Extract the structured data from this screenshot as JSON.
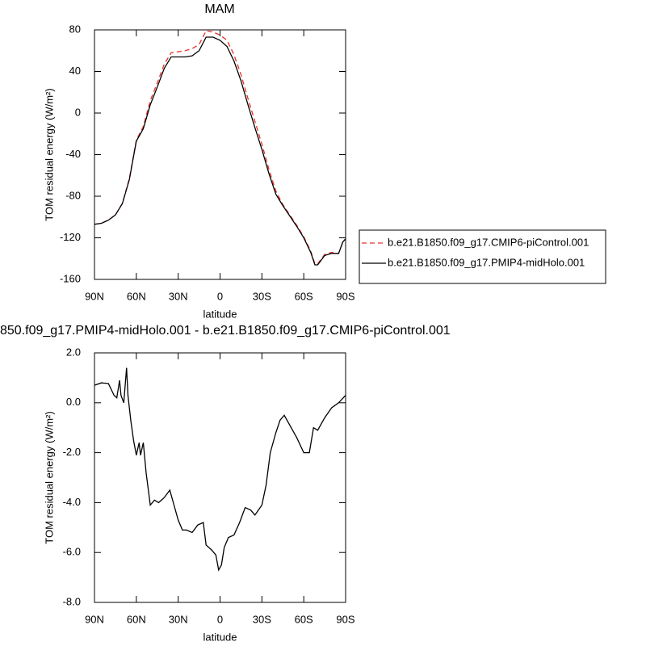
{
  "chart_data": [
    {
      "type": "line",
      "title": "MAM",
      "xlabel": "latitude",
      "ylabel": "TOM residual energy (W/m²)",
      "xlim": [
        90,
        -90
      ],
      "xticks": [
        {
          "value": 90,
          "label": "90N"
        },
        {
          "value": 60,
          "label": "60N"
        },
        {
          "value": 30,
          "label": "30N"
        },
        0,
        {
          "value": -30,
          "label": "30S"
        },
        {
          "value": -60,
          "label": "60S"
        },
        {
          "value": -90,
          "label": "90S"
        }
      ],
      "ylim": [
        -160,
        80
      ],
      "yticks": [
        -160,
        -120,
        -80,
        -40,
        0,
        40,
        80
      ],
      "legend": "right",
      "x": [
        90,
        85,
        80,
        75,
        70,
        65,
        60,
        55,
        50,
        45,
        40,
        35,
        30,
        25,
        20,
        15,
        10,
        5,
        0,
        -5,
        -10,
        -15,
        -20,
        -25,
        -30,
        -35,
        -40,
        -45,
        -50,
        -55,
        -60,
        -65,
        -68,
        -70,
        -75,
        -80,
        -85,
        -88,
        -90
      ],
      "series": [
        {
          "name": "b.e21.B1850.f09_g17.CMIP6-piControl.001",
          "color": "#e8302a",
          "dash": true,
          "values": [
            -107,
            -106,
            -103,
            -98,
            -87,
            -63,
            -26,
            -13,
            12,
            29,
            47,
            58,
            59,
            60,
            62,
            66,
            79,
            78,
            75,
            70,
            56,
            37,
            14,
            -8,
            -30,
            -54,
            -75,
            -88,
            -98,
            -108,
            -119,
            -133,
            -145,
            -145,
            -136,
            -134,
            -135,
            -124,
            -121
          ]
        },
        {
          "name": "b.e21.B1850.f09_g17.PMIP4-midHolo.001",
          "color": "#000000",
          "dash": false,
          "values": [
            -107,
            -106,
            -103,
            -98,
            -87,
            -64,
            -27,
            -15,
            8,
            25,
            43,
            54,
            54,
            54,
            55,
            60,
            73,
            73,
            70,
            64,
            50,
            31,
            8,
            -14,
            -35,
            -58,
            -78,
            -89,
            -99,
            -109,
            -120,
            -134,
            -146,
            -146,
            -137,
            -135,
            -135,
            -124,
            -121
          ]
        }
      ]
    },
    {
      "type": "line",
      "title": "850.f09_g17.PMIP4-midHolo.001 - b.e21.B1850.f09_g17.CMIP6-piControl.001",
      "xlabel": "latitude",
      "ylabel": "TOM residual energy (W/m²)",
      "xlim": [
        90,
        -90
      ],
      "xticks": [
        {
          "value": 90,
          "label": "90N"
        },
        {
          "value": 60,
          "label": "60N"
        },
        {
          "value": 30,
          "label": "30N"
        },
        0,
        {
          "value": -30,
          "label": "30S"
        },
        {
          "value": -60,
          "label": "60S"
        },
        {
          "value": -90,
          "label": "90S"
        }
      ],
      "ylim": [
        -8,
        2
      ],
      "yticks": [
        {
          "value": -8,
          "label": "-8.0"
        },
        {
          "value": -6,
          "label": "-6.0"
        },
        {
          "value": -4,
          "label": "-4.0"
        },
        {
          "value": -2,
          "label": "-2.0"
        },
        {
          "value": 0,
          "label": "0.0"
        },
        {
          "value": 2,
          "label": "2.0"
        }
      ],
      "color": "#000000",
      "x": [
        90,
        85,
        80,
        76,
        74,
        72,
        71,
        69,
        67,
        66,
        64,
        62,
        60,
        58,
        57,
        55,
        53,
        50,
        47,
        44,
        40,
        36,
        33,
        30,
        27,
        24,
        20,
        16,
        12,
        10,
        6,
        3,
        1,
        -1,
        -3,
        -6,
        -10,
        -14,
        -18,
        -22,
        -25,
        -30,
        -33,
        -36,
        -40,
        -43,
        -46,
        -50,
        -55,
        -60,
        -64,
        -67,
        -70,
        -75,
        -80,
        -85,
        -90
      ],
      "values": [
        0.7,
        0.8,
        0.77,
        0.3,
        0.2,
        0.9,
        0.3,
        0,
        1.4,
        0.3,
        -0.7,
        -1.5,
        -2.1,
        -1.6,
        -2.1,
        -1.6,
        -2.8,
        -4.1,
        -3.9,
        -4.0,
        -3.8,
        -3.5,
        -4.1,
        -4.7,
        -5.1,
        -5.1,
        -5.2,
        -4.9,
        -4.8,
        -5.7,
        -5.9,
        -6.1,
        -6.7,
        -6.5,
        -5.8,
        -5.4,
        -5.3,
        -4.8,
        -4.2,
        -4.3,
        -4.5,
        -4.1,
        -3.3,
        -2.0,
        -1.2,
        -0.7,
        -0.5,
        -0.9,
        -1.4,
        -2.0,
        -2.0,
        -1.0,
        -1.1,
        -0.6,
        -0.2,
        0.0,
        0.3
      ]
    }
  ]
}
